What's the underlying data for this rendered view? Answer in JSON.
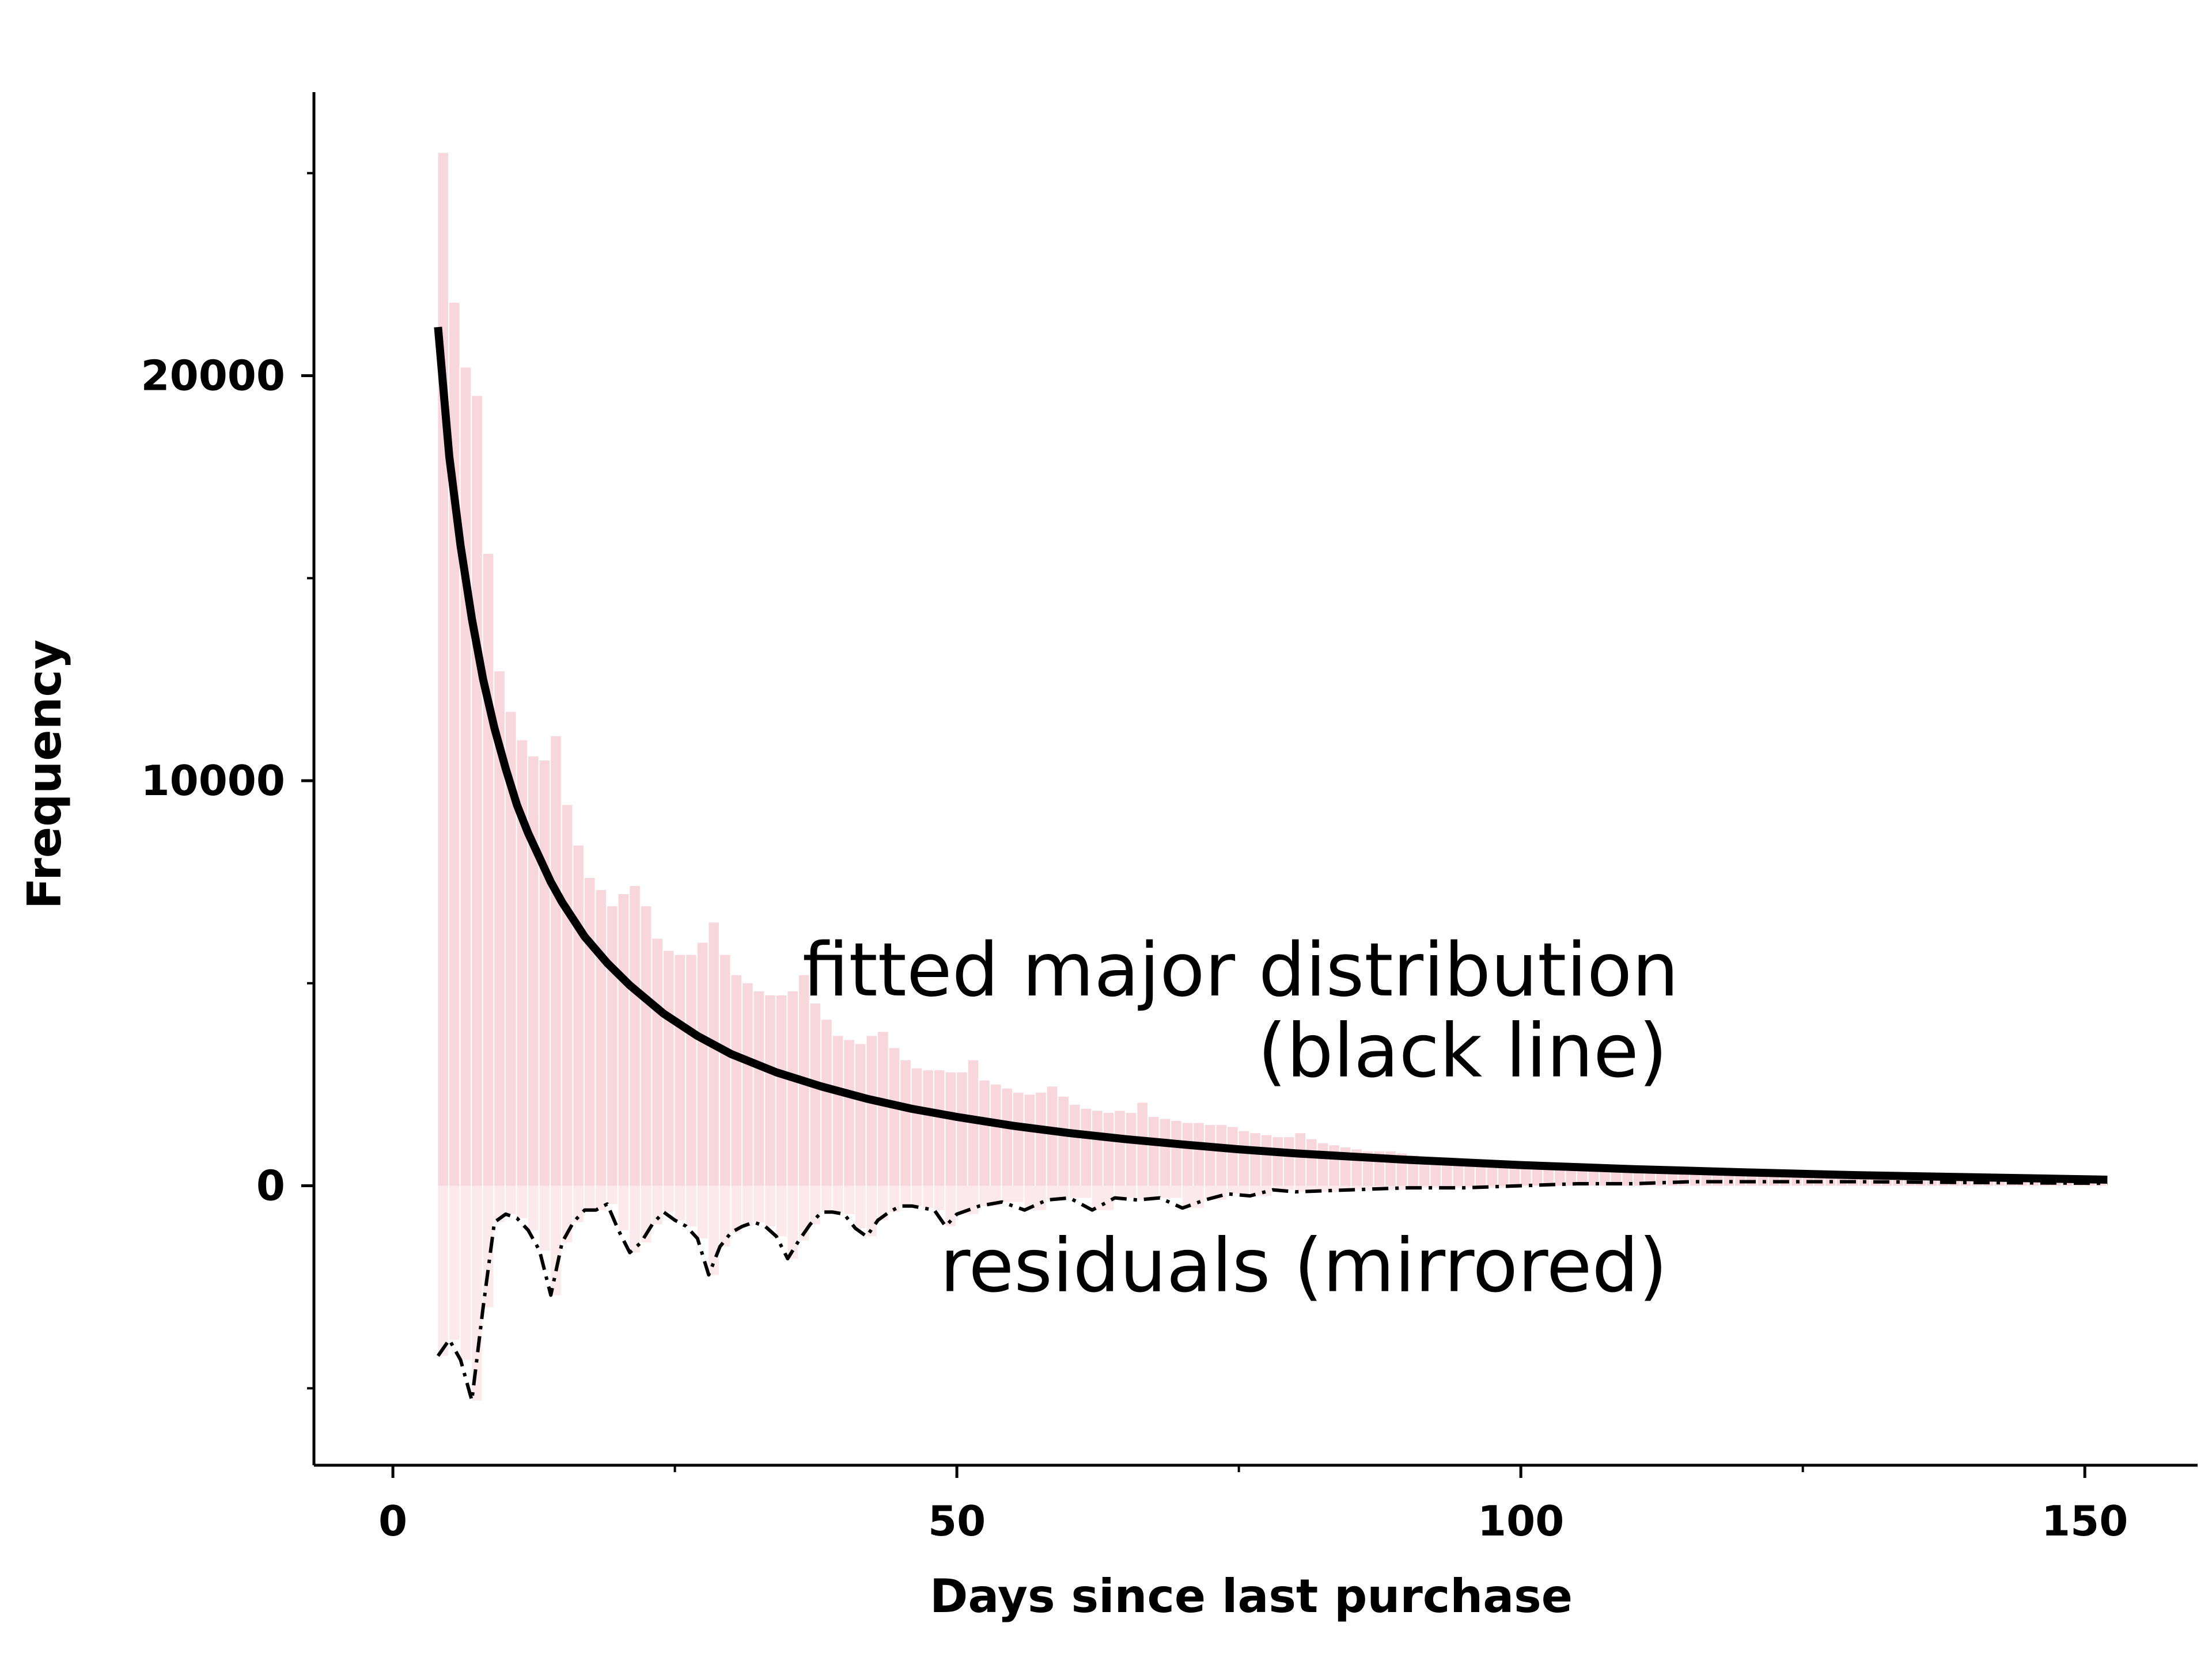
{
  "chart_data": {
    "type": "bar",
    "title": "",
    "xlabel": "Days since last purchase",
    "ylabel": "Frequency",
    "xlim": [
      -7,
      160
    ],
    "ylim": [
      -6900,
      27000
    ],
    "grid": false,
    "legend": "none",
    "colors": {
      "bars": "#f8d7dc",
      "residual_bars": "#fce9eb",
      "fit_line": "#000000",
      "residual_line": "#000000"
    },
    "x_ticks": [
      {
        "value": 0,
        "label": "0"
      },
      {
        "value": 50,
        "label": "50"
      },
      {
        "value": 100,
        "label": "100"
      },
      {
        "value": 150,
        "label": "150"
      }
    ],
    "x_minor_ticks": [
      25,
      75,
      125
    ],
    "y_ticks": [
      {
        "value": 0,
        "label": "0"
      },
      {
        "value": 10000,
        "label": "10000"
      },
      {
        "value": 20000,
        "label": "20000"
      }
    ],
    "y_minor_ticks": [
      -5000,
      5000,
      15000,
      25000
    ],
    "histogram": {
      "x_start": 4,
      "bin_width": 1,
      "values": [
        25500,
        21800,
        20200,
        19500,
        15600,
        12700,
        11700,
        11000,
        10600,
        10500,
        11100,
        9400,
        8400,
        7600,
        7300,
        6900,
        7200,
        7400,
        6900,
        6100,
        5800,
        5700,
        5700,
        6000,
        6500,
        5700,
        5200,
        5000,
        4800,
        4700,
        4700,
        4800,
        5200,
        4500,
        4100,
        3700,
        3600,
        3500,
        3700,
        3800,
        3400,
        3100,
        2900,
        2850,
        2850,
        2800,
        2800,
        3100,
        2600,
        2500,
        2400,
        2300,
        2250,
        2300,
        2450,
        2200,
        2000,
        1900,
        1850,
        1800,
        1850,
        1800,
        2050,
        1700,
        1650,
        1600,
        1550,
        1550,
        1500,
        1500,
        1450,
        1350,
        1300,
        1250,
        1200,
        1200,
        1300,
        1150,
        1050,
        1000,
        950,
        900,
        850,
        850,
        850,
        800,
        750,
        700,
        700,
        700,
        650,
        650,
        600,
        600,
        600,
        550,
        550,
        550,
        500,
        500,
        500,
        450,
        450,
        450,
        400,
        400,
        400,
        350,
        350,
        350,
        350,
        300,
        300,
        300,
        300,
        300,
        250,
        250,
        250,
        250,
        250,
        250,
        200,
        200,
        200,
        200,
        200,
        200,
        200,
        200,
        150,
        150,
        150,
        150,
        150,
        150,
        150,
        150,
        150,
        150,
        150,
        150,
        150,
        150,
        150,
        150,
        150,
        150
      ]
    },
    "fit_line": {
      "x": [
        4,
        5,
        6,
        7,
        8,
        9,
        10,
        11,
        12,
        13,
        14,
        15,
        17,
        19,
        21,
        24,
        27,
        30,
        34,
        38,
        42,
        46,
        50,
        55,
        60,
        65,
        70,
        75,
        80,
        90,
        100,
        110,
        120,
        130,
        140,
        152
      ],
      "y": [
        21200,
        18000,
        15800,
        14000,
        12500,
        11300,
        10300,
        9400,
        8700,
        8100,
        7500,
        7000,
        6150,
        5500,
        4950,
        4250,
        3700,
        3250,
        2800,
        2450,
        2150,
        1900,
        1700,
        1480,
        1300,
        1150,
        1020,
        900,
        800,
        640,
        510,
        410,
        330,
        260,
        210,
        150
      ]
    },
    "residuals_mirrored": {
      "x": [
        4,
        5,
        6,
        7,
        8,
        9,
        10,
        11,
        12,
        13,
        14,
        15,
        16,
        17,
        18,
        19,
        20,
        21,
        22,
        23,
        24,
        25,
        26,
        27,
        28,
        29,
        30,
        31,
        32,
        33,
        34,
        35,
        36,
        37,
        38,
        39,
        40,
        41,
        42,
        43,
        44,
        45,
        46,
        47,
        48,
        49,
        50,
        52,
        54,
        56,
        58,
        60,
        62,
        64,
        66,
        68,
        70,
        72,
        74,
        76,
        78,
        80,
        85,
        90,
        95,
        100,
        105,
        110,
        115,
        120,
        130,
        140,
        152
      ],
      "y": [
        -4200,
        -3800,
        -4300,
        -5300,
        -3000,
        -900,
        -700,
        -800,
        -1100,
        -1600,
        -2700,
        -1400,
        -900,
        -600,
        -600,
        -450,
        -1100,
        -1650,
        -1400,
        -950,
        -650,
        -850,
        -1000,
        -1300,
        -2200,
        -1500,
        -1150,
        -1000,
        -900,
        -1000,
        -1250,
        -1800,
        -1350,
        -950,
        -650,
        -650,
        -700,
        -1050,
        -1250,
        -850,
        -650,
        -500,
        -500,
        -550,
        -600,
        -1000,
        -700,
        -500,
        -400,
        -600,
        -350,
        -300,
        -600,
        -300,
        -350,
        -300,
        -550,
        -350,
        -200,
        -250,
        -100,
        -150,
        -100,
        -50,
        -50,
        0,
        50,
        50,
        100,
        100,
        100,
        80,
        60
      ]
    },
    "annotations": [
      {
        "text": "fitted major distribution",
        "x": 114,
        "y": 4700
      },
      {
        "text": "(black line)",
        "x": 113,
        "y": 2700
      },
      {
        "text": "residuals (mirrored)",
        "x": 113,
        "y": -2600
      }
    ]
  }
}
